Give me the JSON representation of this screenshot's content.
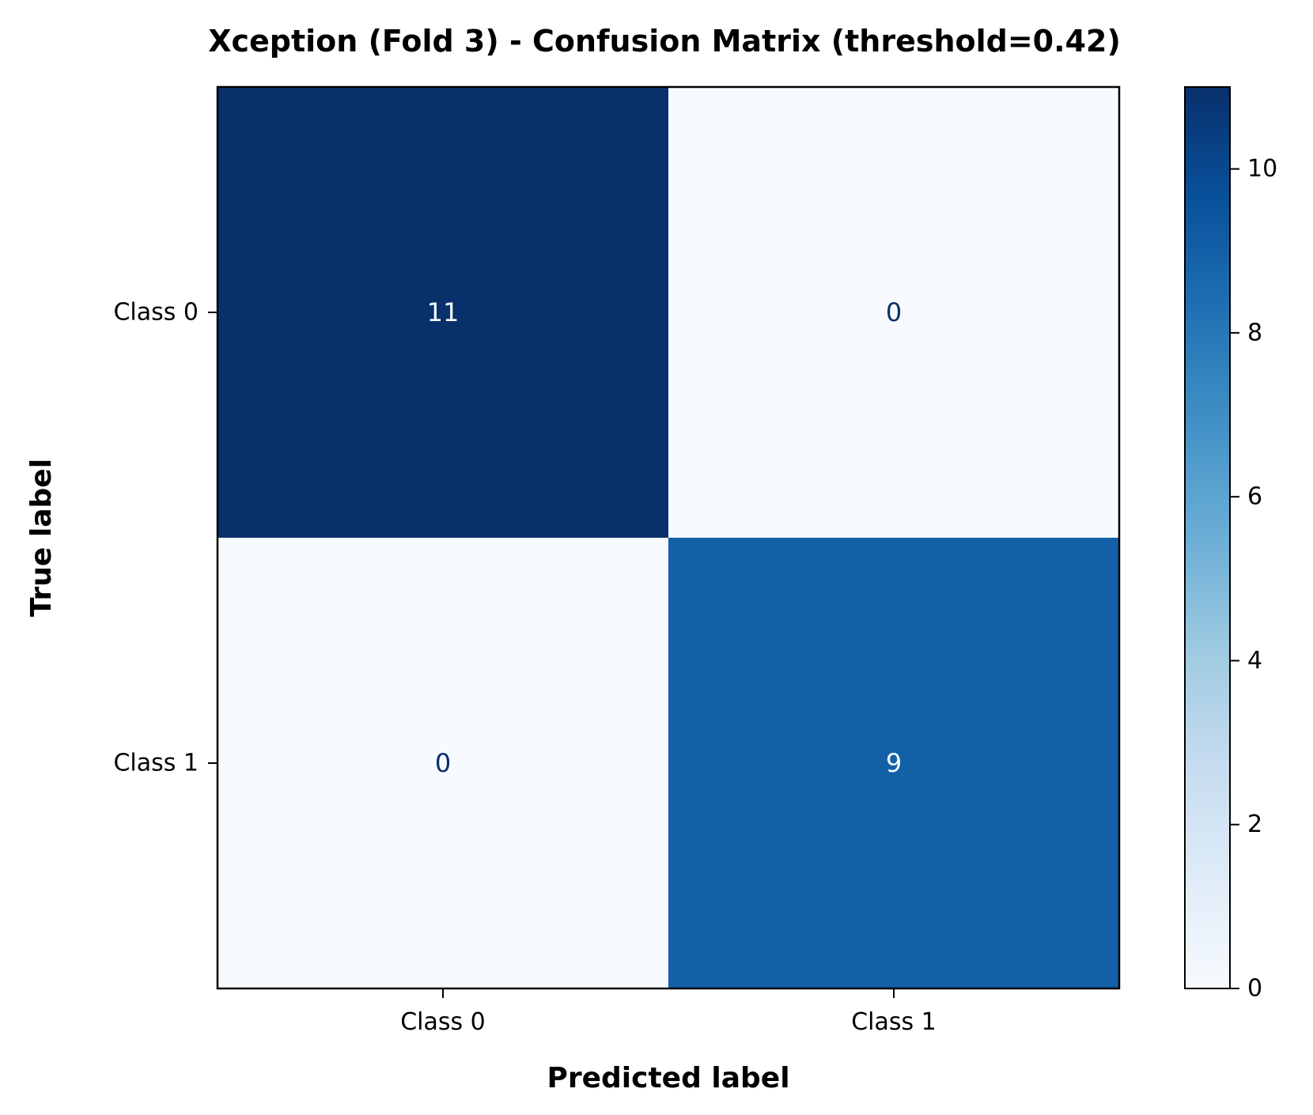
{
  "chart_data": {
    "type": "heatmap",
    "title": "Xception (Fold 3) - Confusion Matrix (threshold=0.42)",
    "xlabel": "Predicted label",
    "ylabel": "True label",
    "x_categories": [
      "Class 0",
      "Class 1"
    ],
    "y_categories": [
      "Class 0",
      "Class 1"
    ],
    "values": [
      [
        11,
        0
      ],
      [
        0,
        9
      ]
    ],
    "cell_labels": [
      [
        "11",
        "0"
      ],
      [
        "0",
        "9"
      ]
    ],
    "colormap": "Blues",
    "color_range": [
      0,
      11
    ],
    "colorbar": {
      "ticks": [
        0,
        2,
        4,
        6,
        8,
        10
      ],
      "tick_labels": [
        "0",
        "2",
        "4",
        "6",
        "8",
        "10"
      ],
      "range": [
        0,
        11
      ]
    },
    "colors": {
      "low": "#f7fbff",
      "high": "#08306b",
      "text_on_dark": "#f7fbff",
      "text_on_light": "#08306b"
    }
  }
}
